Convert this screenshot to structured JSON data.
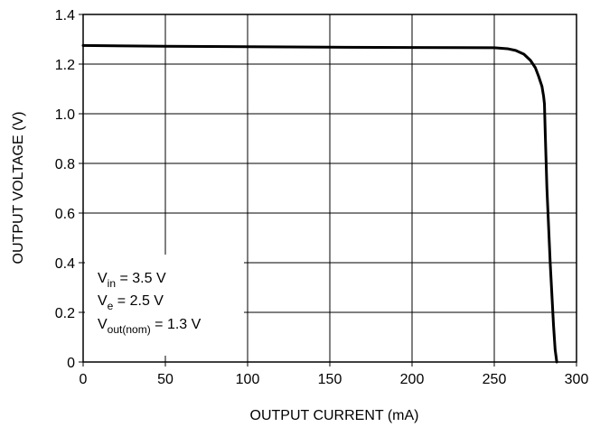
{
  "chart_data": {
    "type": "line",
    "title": "",
    "xlabel": "OUTPUT CURRENT (mA)",
    "ylabel": "OUTPUT VOLTAGE (V)",
    "xlim": [
      0,
      300
    ],
    "ylim": [
      0,
      1.4
    ],
    "x_ticks": [
      0,
      50,
      100,
      150,
      200,
      250,
      300
    ],
    "y_ticks": [
      0,
      0.2,
      0.4,
      0.6,
      0.8,
      1.0,
      1.2,
      1.4
    ],
    "x_tick_labels": [
      "0",
      "50",
      "100",
      "150",
      "200",
      "250",
      "300"
    ],
    "y_tick_labels": [
      "0",
      "0.2",
      "0.4",
      "0.6",
      "0.8",
      "1.0",
      "1.2",
      "1.4"
    ],
    "grid": true,
    "series": [
      {
        "name": "",
        "x": [
          0,
          50,
          100,
          150,
          200,
          250,
          258,
          263,
          268,
          272,
          275,
          277,
          279,
          280,
          280.5,
          281,
          282,
          284,
          286,
          287,
          288
        ],
        "y": [
          1.275,
          1.272,
          1.27,
          1.268,
          1.267,
          1.266,
          1.262,
          1.255,
          1.24,
          1.215,
          1.185,
          1.15,
          1.11,
          1.07,
          1.04,
          0.92,
          0.7,
          0.4,
          0.15,
          0.05,
          0.0
        ],
        "color": "#000000"
      }
    ],
    "annotations": [
      {
        "main": "V",
        "sub": "in",
        "rest": " = 3.5 V"
      },
      {
        "main": "V",
        "sub": "e",
        "rest": " = 2.5 V"
      },
      {
        "main": "V",
        "sub": "out(nom)",
        "rest": " = 1.3 V"
      }
    ],
    "annotation_position": "bottom-left"
  }
}
